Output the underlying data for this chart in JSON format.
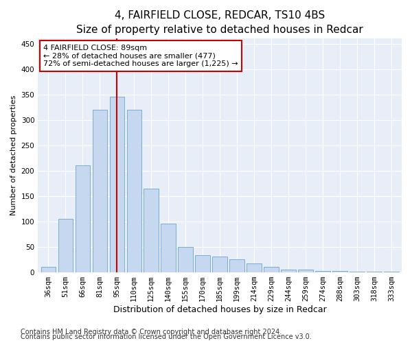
{
  "title": "4, FAIRFIELD CLOSE, REDCAR, TS10 4BS",
  "subtitle": "Size of property relative to detached houses in Redcar",
  "xlabel": "Distribution of detached houses by size in Redcar",
  "ylabel": "Number of detached properties",
  "categories": [
    "36sqm",
    "51sqm",
    "66sqm",
    "81sqm",
    "95sqm",
    "110sqm",
    "125sqm",
    "140sqm",
    "155sqm",
    "170sqm",
    "185sqm",
    "199sqm",
    "214sqm",
    "229sqm",
    "244sqm",
    "259sqm",
    "274sqm",
    "288sqm",
    "303sqm",
    "318sqm",
    "333sqm"
  ],
  "values": [
    10,
    105,
    210,
    320,
    345,
    320,
    165,
    95,
    50,
    33,
    30,
    25,
    17,
    10,
    5,
    5,
    2,
    2,
    1,
    1,
    1
  ],
  "bar_color": "#c5d8f0",
  "bar_edge_color": "#7aadd4",
  "vline_x": 4,
  "vline_color": "#cc0000",
  "annotation_text": "4 FAIRFIELD CLOSE: 89sqm\n← 28% of detached houses are smaller (477)\n72% of semi-detached houses are larger (1,225) →",
  "annotation_box_color": "#ffffff",
  "annotation_box_edge": "#cc0000",
  "ylim": [
    0,
    460
  ],
  "yticks": [
    0,
    50,
    100,
    150,
    200,
    250,
    300,
    350,
    400,
    450
  ],
  "footer1": "Contains HM Land Registry data © Crown copyright and database right 2024.",
  "footer2": "Contains public sector information licensed under the Open Government Licence v3.0.",
  "background_color": "#e8eef8",
  "title_fontsize": 11,
  "xlabel_fontsize": 9,
  "ylabel_fontsize": 8,
  "tick_fontsize": 7.5,
  "annotation_fontsize": 8,
  "footer_fontsize": 7
}
